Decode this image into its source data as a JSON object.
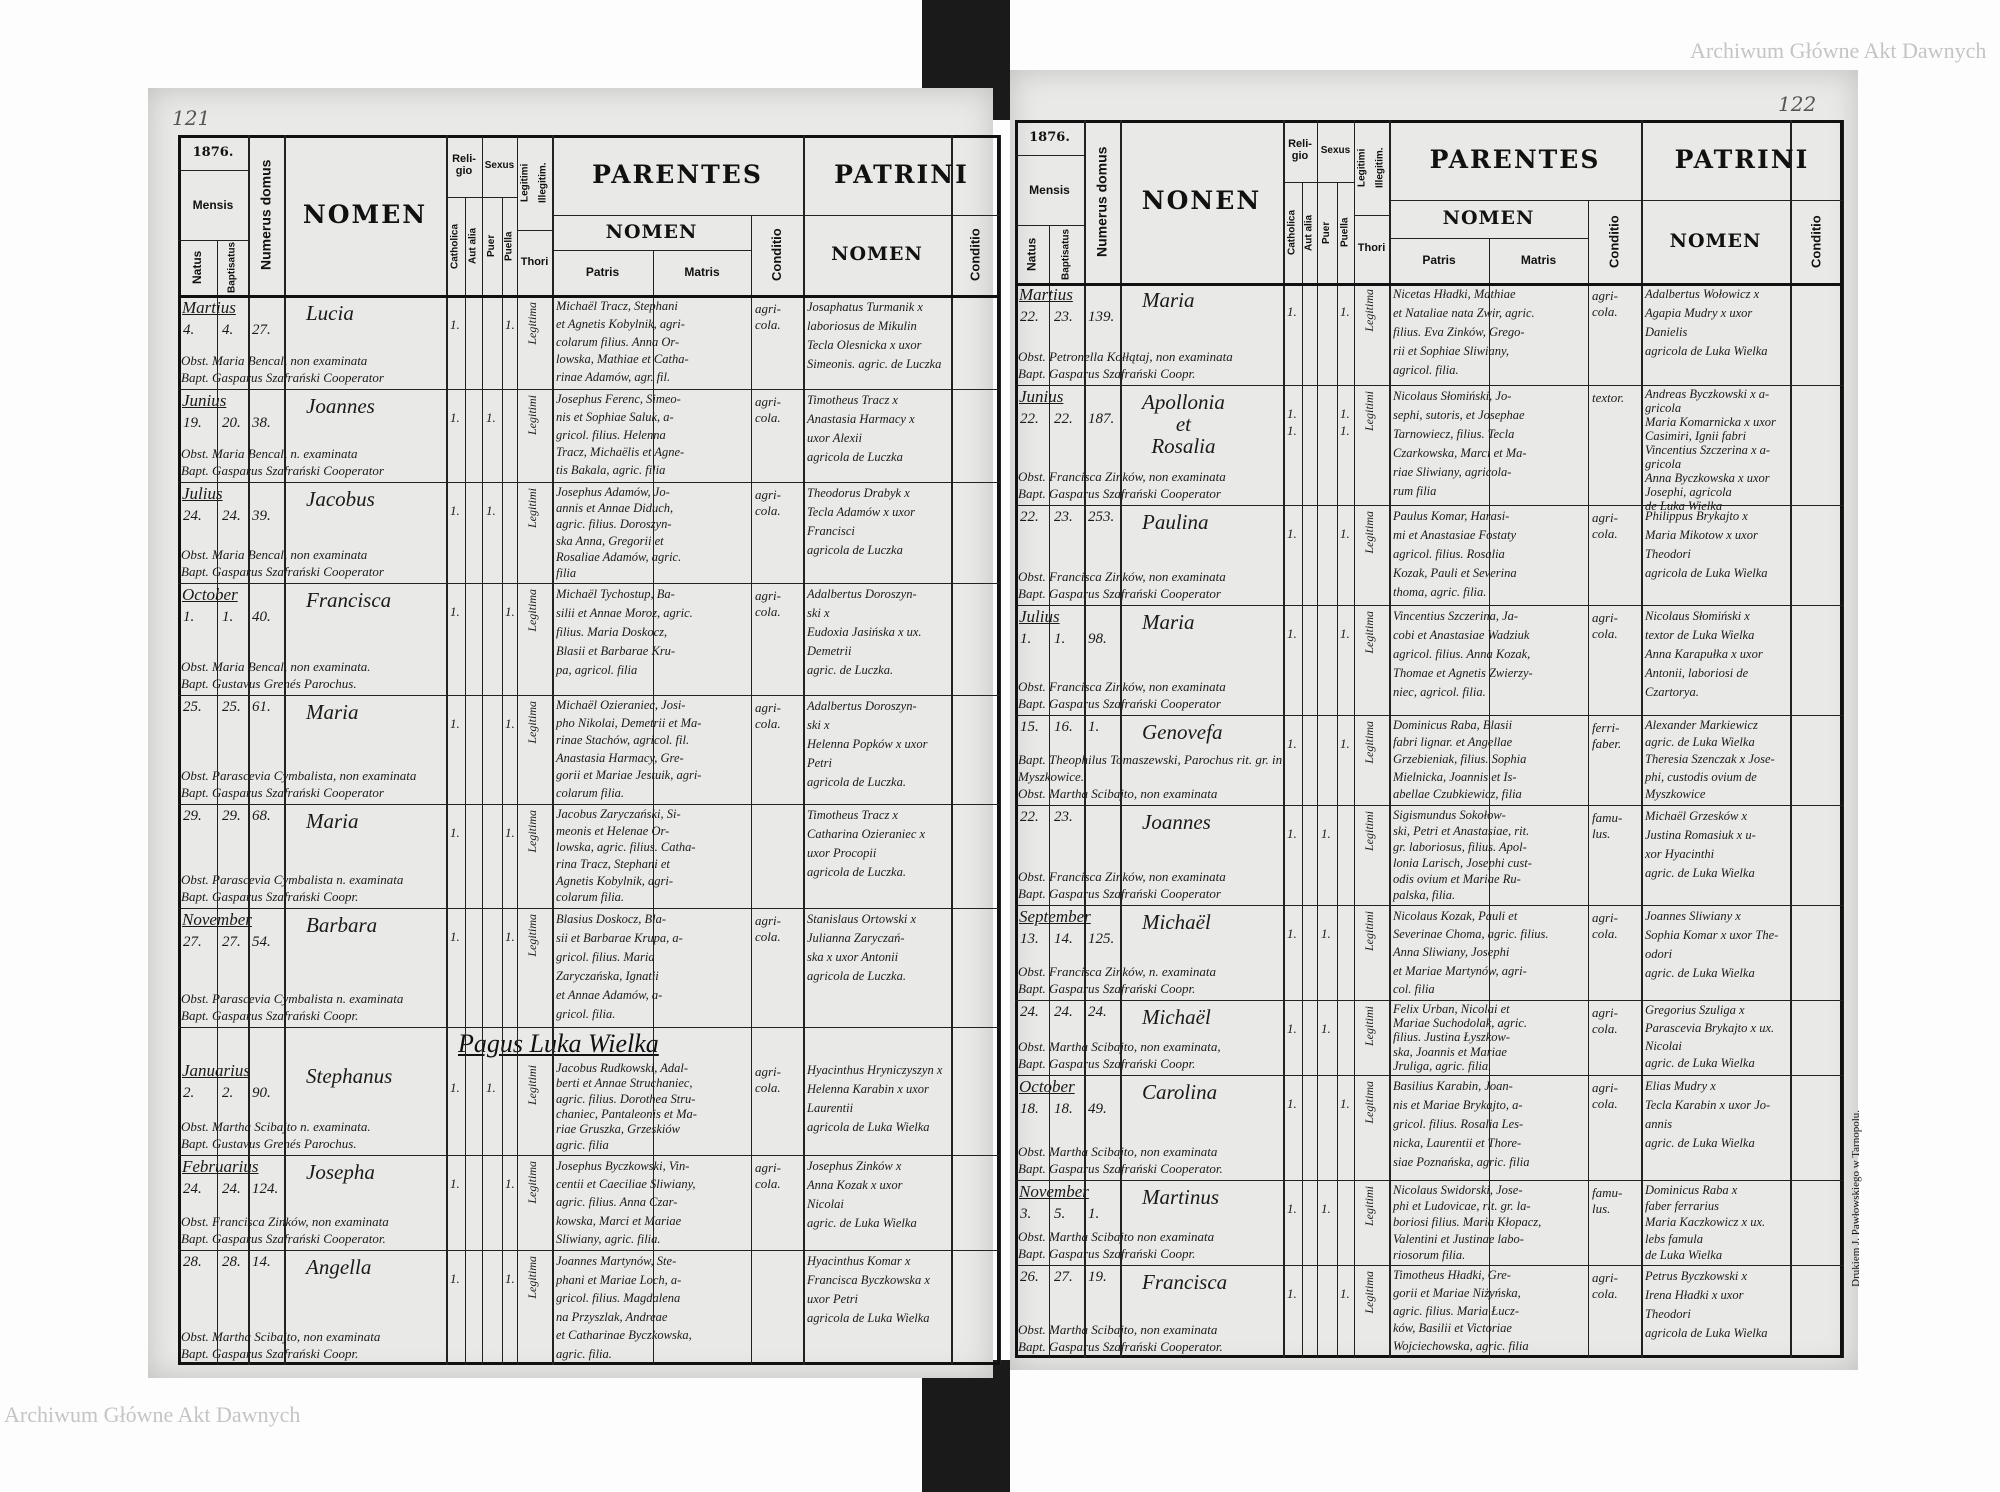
{
  "header": {
    "year": "1876.",
    "mensis": "Mensis",
    "natus": "Natus",
    "baptisatus": "Baptisatus",
    "numerus_domus": "Numerus domus",
    "nomen_left": "NOMEN",
    "nomen_right": "NONEN",
    "religio": "Reli-gio",
    "catholica": "Catholica",
    "aut_alia": "Aut alia",
    "sexus": "Sexus",
    "puer": "Puer",
    "puella": "Puella",
    "legitimi": "Legitimi",
    "illegitimi": "Illegitim.",
    "thori": "Thori",
    "parentes": "PARENTES",
    "parentes_nomen": "NOMEN",
    "patris": "Patris",
    "matris": "Matris",
    "conditio": "Conditio",
    "patrini": "PATRINI",
    "patrini_nomen": "NOMEN"
  },
  "left_page": {
    "page_number": "121",
    "pagus_heading": "Pagus Luka Wielka",
    "entries": [
      {
        "month": "Martius",
        "natus": "4.",
        "bapt": "4.",
        "domus": "27.",
        "nomen": "Lucia",
        "rel": "1.",
        "puer": "",
        "puella": "1.",
        "legit": "Legitima",
        "parentes": "Michaël Tracz, Stephani\net Agnetis Kobylnik, agri-\ncolarum filius. Anna Or-\nlowska, Mathiae et Catha-\nrinae Adamów, agr. fil.",
        "cond": "agri-\ncola.",
        "patrini": "Josaphatus Turmanik x\nlaboriosus de Mikulin\nTecla Olesnicka x uxor\nSimeonis. agric. de Luczka",
        "pcond": "",
        "obst": "Obst. Maria Bencal, non examinata",
        "bapt_line": "Bapt. Gasparus Szafrański Cooperator"
      },
      {
        "month": "Junius",
        "natus": "19.",
        "bapt": "20.",
        "domus": "38.",
        "nomen": "Joannes",
        "rel": "1.",
        "puer": "1.",
        "puella": "",
        "legit": "Legitimi",
        "parentes": "Josephus Ferenc, Simeo-\nnis et Sophiae Saluk, a-\ngricol. filius. Helenna\nTracz, Michaëlis et Agne-\ntis Bakala, agric. filia",
        "cond": "agri-\ncola.",
        "patrini": "Timotheus Tracz x\nAnastasia Harmacy x\nuxor Alexii\nagricola de Luczka",
        "pcond": "",
        "obst": "Obst. Maria Bencal, n. examinata",
        "bapt_line": "Bapt. Gasparus Szafrański Cooperator"
      },
      {
        "month": "Julius",
        "natus": "24.",
        "bapt": "24.",
        "domus": "39.",
        "nomen": "Jacobus",
        "rel": "1.",
        "puer": "1.",
        "puella": "",
        "legit": "Legitimi",
        "parentes": "Josephus Adamów, Jo-\nannis et Annae Diduch,\nagric. filius. Doroszyn-\nska Anna, Gregorii et\nRosaliae Adamów, agric.\nfilia",
        "cond": "agri-\ncola.",
        "patrini": "Theodorus Drabyk x\nTecla Adamów x uxor\nFrancisci\nagricola de Luczka",
        "pcond": "",
        "obst": "Obst. Maria Bencal, non examinata",
        "bapt_line": "Bapt. Gasparus Szafrański Cooperator"
      },
      {
        "month": "October",
        "natus": "1.",
        "bapt": "1.",
        "domus": "40.",
        "nomen": "Francisca",
        "rel": "1.",
        "puer": "",
        "puella": "1.",
        "legit": "Legitima",
        "parentes": "Michaël Tychostup, Ba-\nsilii et Annae Moroz, agric.\nfilius. Maria Doskocz,\nBlasii et Barbarae Kru-\npa, agricol. filia",
        "cond": "agri-\ncola.",
        "patrini": "Adalbertus Doroszyn-\nski x\nEudoxia Jasińska x ux.\nDemetrii\nagric. de Luczka.",
        "pcond": "",
        "obst": "Obst. Maria Bencal, non examinata.",
        "bapt_line": "Bapt. Gustavus Grenés Parochus."
      },
      {
        "month": "",
        "natus": "25.",
        "bapt": "25.",
        "domus": "61.",
        "nomen": "Maria",
        "rel": "1.",
        "puer": "",
        "puella": "1.",
        "legit": "Legitima",
        "parentes": "Michaël Ozieraniec, Josi-\npho Nikolai, Demetrii et Ma-\nrinae Stachów, agricol. fil.\nAnastasia Harmacy, Gre-\ngorii et Mariae Jestuik, agri-\ncolarum filia.",
        "cond": "agri-\ncola.",
        "patrini": "Adalbertus Doroszyn-\nski x\nHelenna Popków x uxor\nPetri\nagricola de Luczka.",
        "pcond": "",
        "obst": "Obst. Parascevia Cymbalista, non examinata",
        "bapt_line": "Bapt. Gasparus Szafrański Cooperator"
      },
      {
        "month": "",
        "natus": "29.",
        "bapt": "29.",
        "domus": "68.",
        "nomen": "Maria",
        "rel": "1.",
        "puer": "",
        "puella": "1.",
        "legit": "Legitima",
        "parentes": "Jacobus Zaryczański, Si-\nmeonis et Helenae Or-\nlowska, agric. filius. Catha-\nrina Tracz, Stephani et\nAgnetis Kobylnik, agri-\ncolarum filia.",
        "cond": "",
        "patrini": "Timotheus Tracz x\nCatharina Ozieraniec x\nuxor Procopii\nagricola de Luczka.",
        "pcond": "",
        "obst": "Obst. Parascevia Cymbalista n. examinata",
        "bapt_line": "Bapt. Gasparus Szafrański Coopr."
      },
      {
        "month": "November",
        "natus": "27.",
        "bapt": "27.",
        "domus": "54.",
        "nomen": "Barbara",
        "rel": "1.",
        "puer": "",
        "puella": "1.",
        "legit": "Legitima",
        "parentes": "Blasius Doskocz, Bla-\nsii et Barbarae Krupa, a-\ngricol. filius. Maria\nZaryczańska, Ignatii\net Annae Adamów, a-\ngricol. filia.",
        "cond": "agri-\ncola.",
        "patrini": "Stanislaus Ortowski x\nJulianna Zaryczań-\nska x uxor Antonii\nagricola de Luczka.",
        "pcond": "",
        "obst": "Obst. Parascevia Cymbalista n. examinata",
        "bapt_line": "Bapt. Gasparus Szafrański Coopr."
      },
      {
        "month": "Januarius",
        "natus": "2.",
        "bapt": "2.",
        "domus": "90.",
        "nomen": "Stephanus",
        "rel": "1.",
        "puer": "1.",
        "puella": "",
        "legit": "Legitimi",
        "parentes": "Jacobus Rudkowski, Adal-\nberti et Annae Struchaniec,\nagric. filius. Dorothea Stru-\nchaniec, Pantaleonis et Ma-\nriae Gruszka, Grzeskiów\nagric. filia",
        "cond": "agri-\ncola.",
        "patrini": "Hyacinthus Hryniczyszyn x\nHelenna Karabin x uxor\nLaurentii\nagricola de Luka Wielka",
        "pcond": "",
        "obst": "Obst. Martha Scibajto n. examinata.",
        "bapt_line": "Bapt. Gustavus Grenés Parochus."
      },
      {
        "month": "Februarius",
        "natus": "24.",
        "bapt": "24.",
        "domus": "124.",
        "nomen": "Josepha",
        "rel": "1.",
        "puer": "",
        "puella": "1.",
        "legit": "Legitima",
        "parentes": "Josephus Byczkowski, Vin-\ncentii et Caeciliae Sliwiany,\nagric. filius. Anna Czar-\nkowska, Marci et Mariae\nSliwiany, agric. filia.",
        "cond": "agri-\ncola.",
        "patrini": "Josephus Zinków x\nAnna Kozak x uxor\nNicolai\nagric. de Luka Wielka",
        "pcond": "",
        "obst": "Obst. Francisca Zinków, non examinata",
        "bapt_line": "Bapt. Gasparus Szafrański Cooperator."
      },
      {
        "month": "",
        "natus": "28.",
        "bapt": "28.",
        "domus": "14.",
        "nomen": "Angella",
        "rel": "1.",
        "puer": "",
        "puella": "1.",
        "legit": "Legitima",
        "parentes": "Joannes Martynów, Ste-\nphani et Mariae Loch, a-\ngricol. filius. Magdalena\nna Przyszlak, Andreae\net Catharinae Byczkowska,\nagric. filia.",
        "cond": "",
        "patrini": "Hyacinthus Komar x\nFrancisca Byczkowska x\nuxor Petri\nagricola de Luka Wielka",
        "pcond": "",
        "obst": "Obst. Martha Scibajto, non examinata",
        "bapt_line": "Bapt. Gasparus Szafrański Coopr."
      }
    ]
  },
  "right_page": {
    "page_number": "122",
    "printer": "Drukiem J. Pawłowskiego w Tarnopolu.",
    "watermark": "Archiwum Główne Akt Dawnych",
    "entries": [
      {
        "month": "Martius",
        "natus": "22.",
        "bapt": "23.",
        "domus": "139.",
        "nomen": "Maria",
        "rel": "1.",
        "puer": "",
        "puella": "1.",
        "legit": "Legitima",
        "parentes": "Nicetas Hładki, Mathiae\net Nataliae nata Zwir, agric.\nfilius. Eva Zinków, Grego-\nrii et Sophiae Sliwiany,\nagricol. filia.",
        "cond": "agri-\ncola.",
        "patrini": "Adalbertus Wołowicz x\nAgapia Mudry x uxor\nDanielis\nagricola de Luka Wielka",
        "pcond": "",
        "obst": "Obst. Petronella Kołłątaj, non examinata",
        "bapt_line": "Bapt. Gasparus Szafrański Coopr."
      },
      {
        "month": "Junius",
        "natus": "22.",
        "bapt": "22.",
        "domus": "187.",
        "nomen": "Apollonia\net\nRosalia",
        "rel": "1.\n1.",
        "puer": "",
        "puella": "1.\n1.",
        "legit": "Legitimi",
        "parentes": "Nicolaus Słomiński, Jo-\nsephi, sutoris, et Josephae\nTarnowiecz, filius. Tecla\nCzarkowska, Marci et Ma-\nriae Sliwiany, agricola-\nrum filia",
        "cond": "textor.",
        "patrini": "Andreas Byczkowski x a-\ngricola\nMaria Komarnicka x uxor\nCasimiri, Ignii fabri\nVincentius Szczerina x a-\ngricola\nAnna Byczkowska x uxor\nJosephi, agricola\nde Luka Wielka",
        "pcond": "",
        "obst": "Obst. Francisca Zinków, non examinata",
        "bapt_line": "Bapt. Gasparus Szafrański Cooperator"
      },
      {
        "month": "",
        "natus": "22.",
        "bapt": "23.",
        "domus": "253.",
        "nomen": "Paulina",
        "rel": "1.",
        "puer": "",
        "puella": "1.",
        "legit": "Legitima",
        "parentes": "Paulus Komar, Harasi-\nmi et Anastasiae Fostaty\nagricol. filius. Rosalia\nKozak, Pauli et Severina\nthoma, agric. filia.",
        "cond": "agri-\ncola.",
        "patrini": "Philippus Brykajto x\nMaria Mikotow x uxor\nTheodori\nagricola de Luka Wielka",
        "pcond": "",
        "obst": "Obst. Francisca Zinków, non examinata",
        "bapt_line": "Bapt. Gasparus Szafrański Cooperator"
      },
      {
        "month": "Julius",
        "natus": "1.",
        "bapt": "1.",
        "domus": "98.",
        "nomen": "Maria",
        "rel": "1.",
        "puer": "",
        "puella": "1.",
        "legit": "Legitima",
        "parentes": "Vincentius Szczerina, Ja-\ncobi et Anastasiae Wadziuk\nagricol. filius. Anna Kozak,\nThomae et Agnetis Zwierzy-\nniec, agricol. filia.",
        "cond": "agri-\ncola.",
        "patrini": "Nicolaus Słomiński x\ntextor de Luka Wielka\nAnna Karapułka x uxor\nAntonii, laboriosi de\nCzartorya.",
        "pcond": "",
        "obst": "Obst. Francisca Zinków, non examinata",
        "bapt_line": "Bapt. Gasparus Szafrański Cooperator"
      },
      {
        "month": "",
        "natus": "15.",
        "bapt": "16.",
        "domus": "1.",
        "nomen": "Genovefa",
        "rel": "1.",
        "puer": "",
        "puella": "1.",
        "legit": "Legitima",
        "parentes": "Dominicus Raba, Blasii\nfabri lignar. et Angellae\nGrzebieniak, filius. Sophia\nMielnicka, Joannis et Is-\nabellae Czubkiewicz, filia",
        "cond": "ferri-\nfaber.",
        "patrini": "Alexander Markiewicz\nagric. de Luka Wielka\nTheresia Szenczak x Jose-\nphi, custodis ovium de\nMyszkowice",
        "pcond": "",
        "obst": "Bapt. Theophilus Tomaszewski, Parochus rit. gr. in Myszkowice.",
        "bapt_line": "Obst. Martha Scibajto, non examinata"
      },
      {
        "month": "",
        "natus": "22.",
        "bapt": "23.",
        "domus": "",
        "nomen": "Joannes",
        "rel": "1.",
        "puer": "1.",
        "puella": "",
        "legit": "Legitimi",
        "parentes": "Sigismundus Sokołow-\nski, Petri et Anastasiae, rit.\ngr. laboriosus, filius. Apol-\nlonia Larisch, Josephi cust-\nodis ovium et Mariae Ru-\npalska, filia.",
        "cond": "famu-\nlus.",
        "patrini": "Michaël Grzesków x\nJustina Romasiuk x u-\nxor Hyacinthi\nagric. de Luka Wielka",
        "pcond": "",
        "obst": "Obst. Francisca Zinków, non examinata",
        "bapt_line": "Bapt. Gasparus Szafrański Cooperator"
      },
      {
        "month": "September",
        "natus": "13.",
        "bapt": "14.",
        "domus": "125.",
        "nomen": "Michaël",
        "rel": "1.",
        "puer": "1.",
        "puella": "",
        "legit": "Legitimi",
        "parentes": "Nicolaus Kozak, Pauli et\nSeverinae Choma, agric. filius.\nAnna Sliwiany, Josephi\net Mariae Martynów, agri-\ncol. filia",
        "cond": "agri-\ncola.",
        "patrini": "Joannes Sliwiany x\nSophia Komar x uxor The-\nodori\nagric. de Luka Wielka",
        "pcond": "",
        "obst": "Obst. Francisca Zinków, n. examinata",
        "bapt_line": "Bapt. Gasparus Szafrański Coopr."
      },
      {
        "month": "",
        "natus": "24.",
        "bapt": "24.",
        "domus": "24.",
        "nomen": "Michaël",
        "rel": "1.",
        "puer": "1.",
        "puella": "",
        "legit": "Legitimi",
        "parentes": "Felix Urban, Nicolai et\nMariae Suchodolak, agric.\nfilius. Justina Łyszkow-\nska, Joannis et Mariae\nJruliga, agric. filia.",
        "cond": "agri-\ncola.",
        "patrini": "Gregorius Szuliga x\nParascevia Brykajto x ux.\nNicolai\nagric. de Luka Wielka",
        "pcond": "",
        "obst": "Obst. Martha Scibajto, non examinata,",
        "bapt_line": "Bapt. Gasparus Szafrański Coopr."
      },
      {
        "month": "October",
        "natus": "18.",
        "bapt": "18.",
        "domus": "49.",
        "nomen": "Carolina",
        "rel": "1.",
        "puer": "",
        "puella": "1.",
        "legit": "Legitima",
        "parentes": "Basilius Karabin, Joan-\nnis et Mariae Brykajto, a-\ngricol. filius. Rosalia Les-\nnicka, Laurentii et Thore-\nsiae Poznańska, agric. filia",
        "cond": "agri-\ncola.",
        "patrini": "Elias Mudry x\nTecla Karabin x uxor Jo-\nannis\nagric. de Luka Wielka",
        "pcond": "",
        "obst": "Obst. Martha Scibajto, non examinata",
        "bapt_line": "Bapt. Gasparus Szafrański Cooperator."
      },
      {
        "month": "November",
        "natus": "3.",
        "bapt": "5.",
        "domus": "1.",
        "nomen": "Martinus",
        "rel": "1.",
        "puer": "1.",
        "puella": "",
        "legit": "Legitimi",
        "parentes": "Nicolaus Swidorski, Jose-\nphi et Ludovicae, rit. gr. la-\nboriosi filius. Maria Kłopacz,\nValentini et Justinae labo-\nriosorum filia.",
        "cond": "famu-\nlus.",
        "patrini": "Dominicus Raba x\nfaber ferrarius\nMaria Kaczkowicz x ux.\nlebs famula\nde Luka Wielka",
        "pcond": "",
        "obst": "Obst. Martha Scibajto non examinata",
        "bapt_line": "Bapt. Gasparus Szafrański Coopr."
      },
      {
        "month": "",
        "natus": "26.",
        "bapt": "27.",
        "domus": "19.",
        "nomen": "Francisca",
        "rel": "1.",
        "puer": "",
        "puella": "1.",
        "legit": "Legitima",
        "parentes": "Timotheus Hładki, Gre-\ngorii et Mariae Niżyńska,\nagric. filius. Maria Łucz-\nków, Basilii et Victoriae\nWojciechowska, agric. filia",
        "cond": "agri-\ncola.",
        "patrini": "Petrus Byczkowski x\nIrena Hładki x uxor\nTheodori\nagricola de Luka Wielka",
        "pcond": "",
        "obst": "Obst. Martha Scibajto, non examinata",
        "bapt_line": "Bapt. Gasparus Szafrański Cooperator."
      }
    ]
  },
  "colors": {
    "paper": "#e9e9e7",
    "ink": "#111111",
    "binding": "#1a1a1a"
  }
}
